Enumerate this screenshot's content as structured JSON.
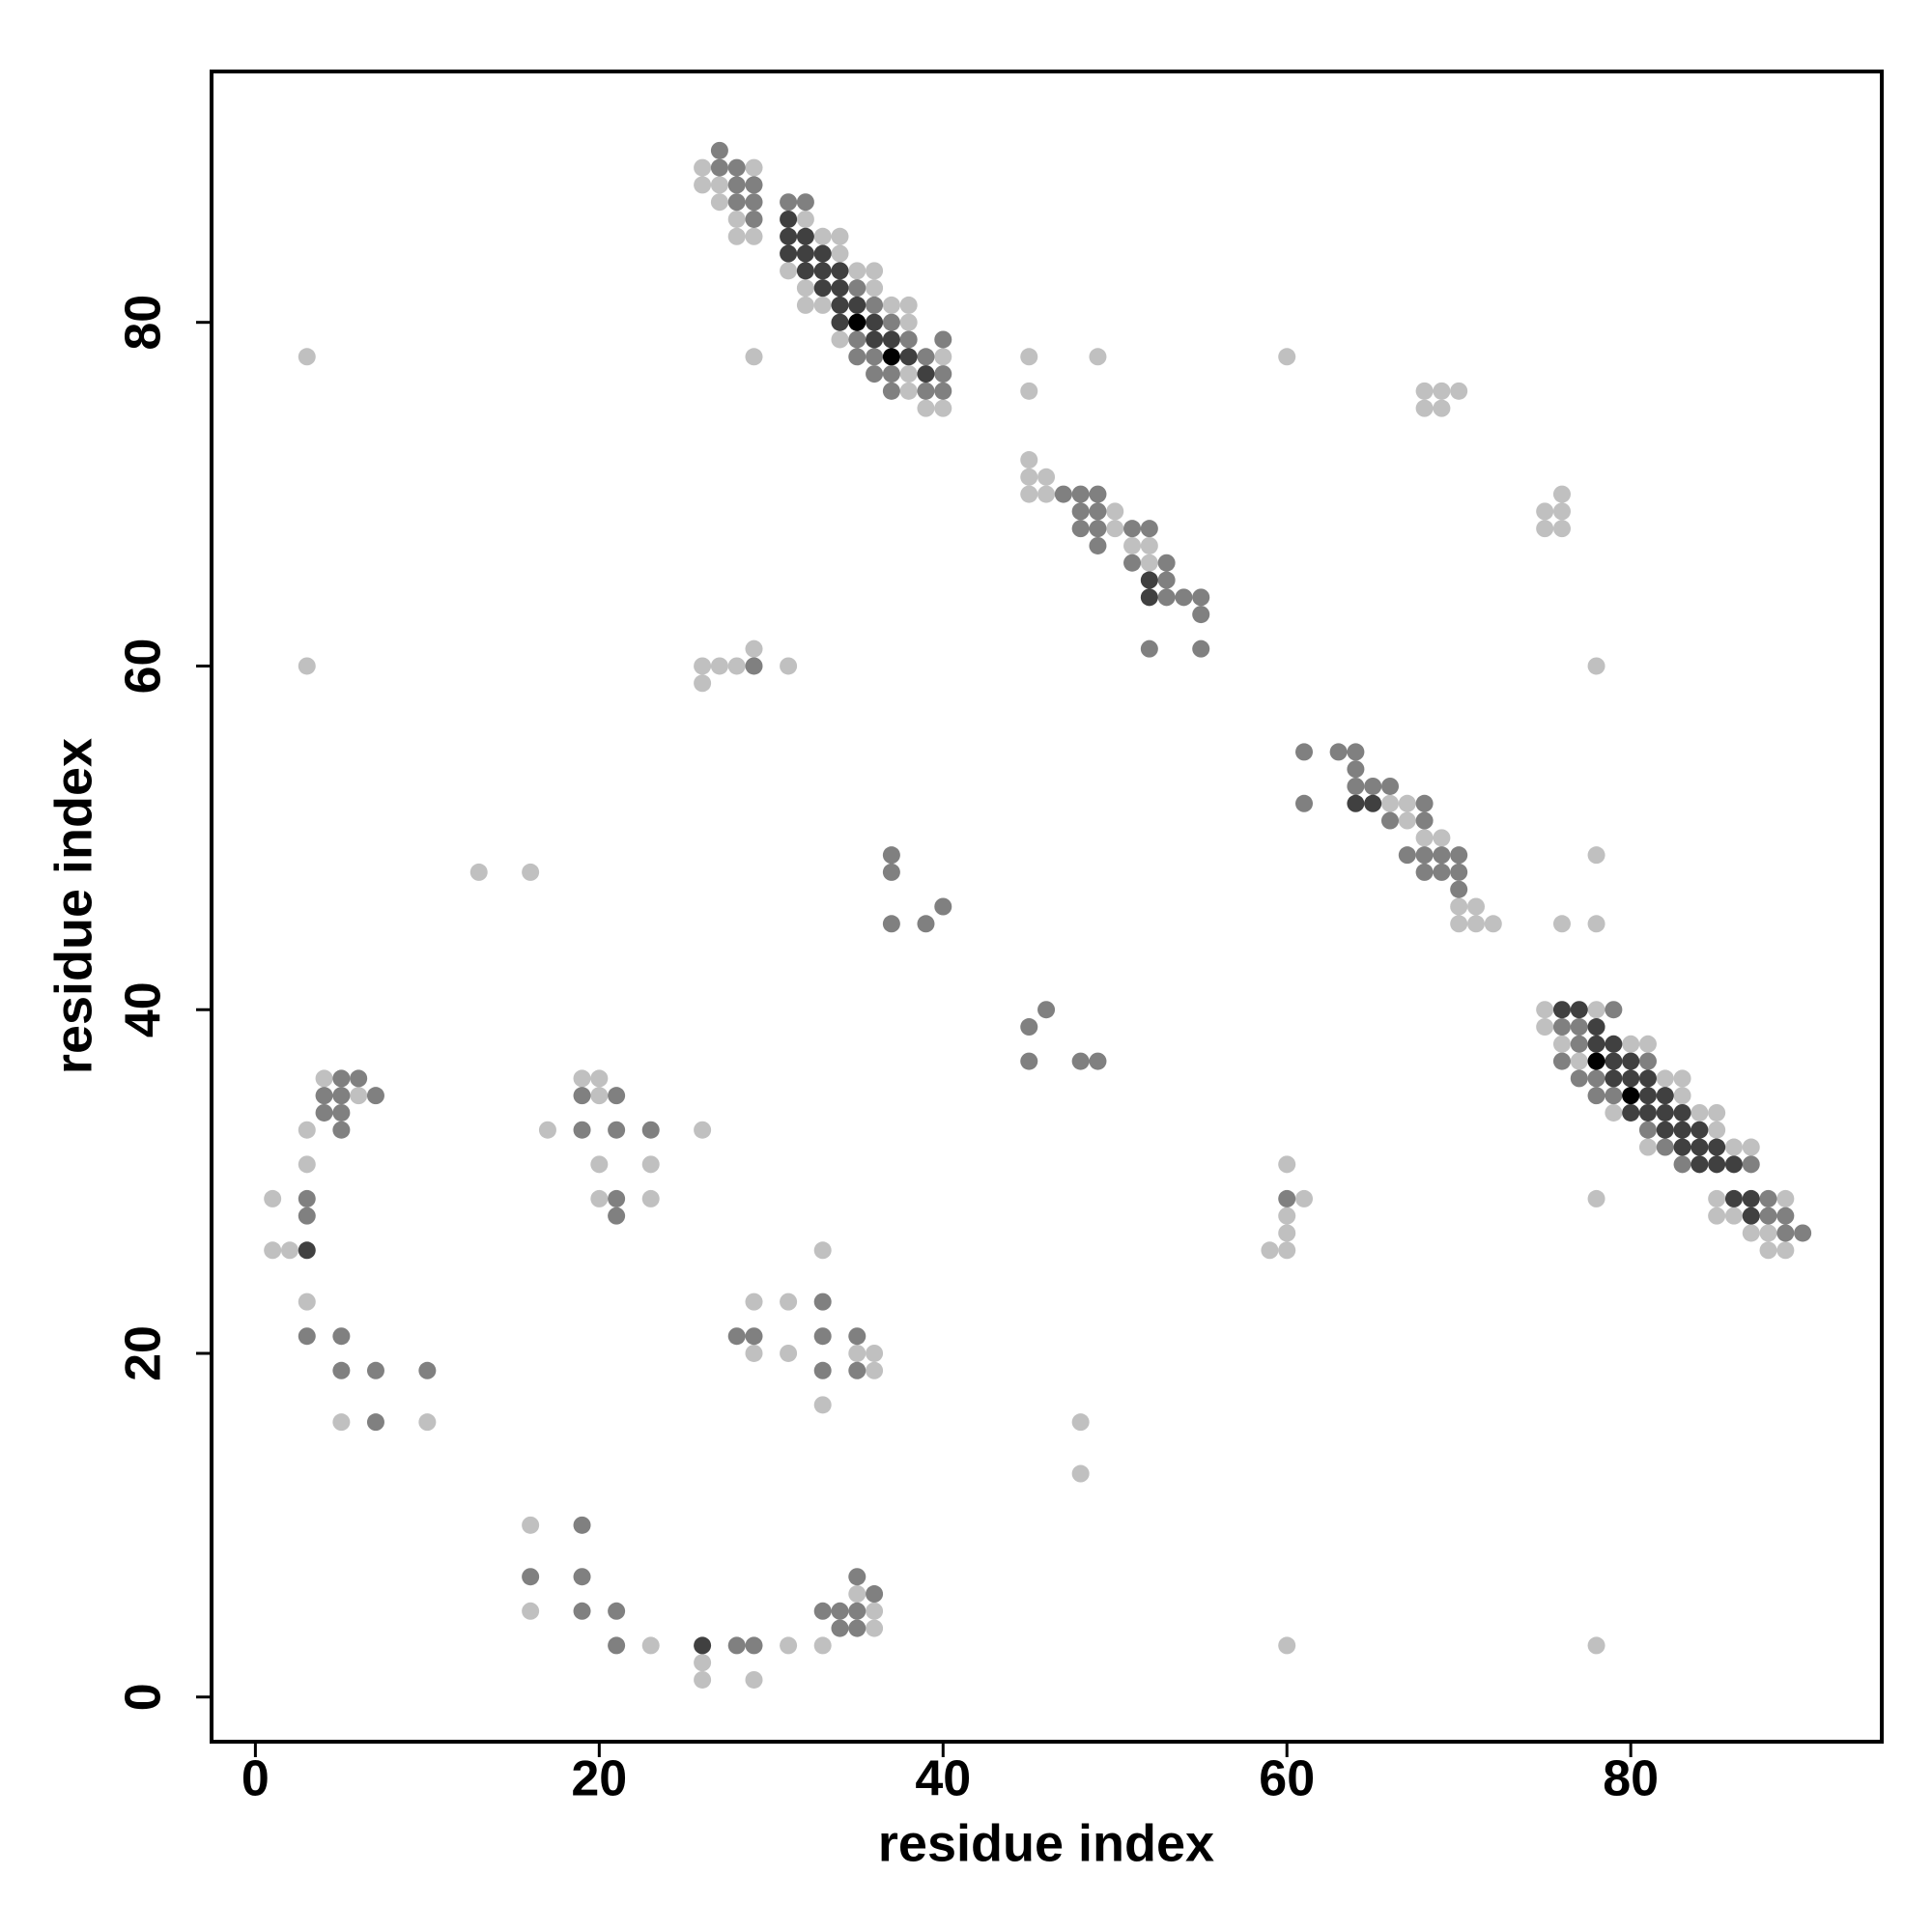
{
  "chart_data": {
    "type": "scatter",
    "xlabel": "residue index",
    "ylabel": "residue index",
    "xlim": [
      -2.55,
      94.6
    ],
    "ylim": [
      -2.6,
      94.6
    ],
    "xticks": [
      0,
      20,
      40,
      60,
      80
    ],
    "yticks": [
      0,
      20,
      40,
      60,
      80
    ],
    "series": [
      {
        "color": "#c0c0c0",
        "x": [
          26,
          29,
          26,
          27,
          27,
          28,
          32,
          28,
          29,
          33,
          34,
          34,
          31,
          35,
          36,
          32,
          36,
          32,
          33,
          37,
          38,
          38,
          34,
          3,
          29,
          40,
          45,
          49,
          60,
          38,
          38,
          45,
          68,
          69,
          70,
          39,
          40,
          68,
          69,
          45,
          45,
          46,
          45,
          46,
          76,
          50,
          75,
          76,
          50,
          75,
          76,
          51,
          52,
          52,
          29,
          3,
          26,
          27,
          28,
          31,
          78,
          26,
          66,
          67,
          67,
          68,
          69,
          78,
          13,
          16,
          70,
          71,
          70,
          71,
          72,
          76,
          78,
          75,
          78,
          75,
          76,
          80,
          81,
          77,
          82,
          83,
          4,
          19,
          20,
          83,
          6,
          20,
          79,
          84,
          85,
          85,
          3,
          17,
          26,
          81,
          86,
          87,
          3,
          20,
          23,
          60,
          78,
          85,
          89,
          1,
          20,
          23,
          61,
          85,
          86,
          60,
          87,
          88,
          60,
          88,
          89,
          1,
          2,
          33,
          59,
          60,
          3,
          29,
          31,
          29,
          31,
          35,
          36,
          36,
          33,
          5,
          10,
          48,
          48,
          16,
          35,
          16,
          36,
          36,
          23,
          31,
          33,
          60,
          78,
          26,
          26,
          29
        ],
        "y": [
          89,
          89,
          88,
          88,
          87,
          86,
          86,
          85,
          85,
          85,
          85,
          84,
          83,
          83,
          83,
          82,
          82,
          81,
          81,
          81,
          81,
          80,
          79,
          78,
          78,
          78,
          78,
          78,
          78,
          77,
          76,
          76,
          76,
          76,
          76,
          75,
          75,
          75,
          75,
          72,
          71,
          71,
          70,
          70,
          70,
          69,
          69,
          69,
          68,
          68,
          68,
          67,
          67,
          66,
          61,
          60,
          60,
          60,
          60,
          60,
          60,
          59,
          52,
          52,
          51,
          50,
          50,
          49,
          48,
          48,
          46,
          46,
          45,
          45,
          45,
          45,
          45,
          40,
          40,
          39,
          38,
          38,
          38,
          37,
          36,
          36,
          36,
          36,
          36,
          35,
          35,
          35,
          34,
          34,
          34,
          33,
          33,
          33,
          33,
          32,
          32,
          32,
          31,
          31,
          31,
          31,
          29,
          29,
          29,
          29,
          29,
          29,
          29,
          28,
          28,
          28,
          27,
          27,
          27,
          26,
          26,
          26,
          26,
          26,
          26,
          26,
          23,
          23,
          23,
          20,
          20,
          20,
          20,
          19,
          17,
          16,
          16,
          16,
          13,
          10,
          6,
          5,
          5,
          4,
          3,
          3,
          3,
          3,
          3,
          2,
          1,
          1
        ]
      },
      {
        "color": "#808080",
        "x": [
          27,
          27,
          28,
          28,
          29,
          28,
          29,
          31,
          32,
          29,
          35,
          36,
          37,
          35,
          38,
          40,
          35,
          36,
          39,
          36,
          37,
          40,
          37,
          39,
          40,
          47,
          48,
          49,
          48,
          49,
          48,
          49,
          51,
          52,
          49,
          51,
          53,
          53,
          53,
          54,
          55,
          55,
          52,
          55,
          29,
          61,
          63,
          64,
          64,
          64,
          65,
          66,
          61,
          68,
          66,
          68,
          37,
          67,
          68,
          69,
          70,
          37,
          68,
          69,
          70,
          70,
          40,
          37,
          39,
          46,
          79,
          45,
          76,
          77,
          77,
          45,
          48,
          49,
          76,
          81,
          77,
          78,
          5,
          6,
          78,
          79,
          4,
          5,
          7,
          19,
          21,
          4,
          5,
          81,
          5,
          19,
          21,
          23,
          82,
          83,
          87,
          88,
          3,
          21,
          60,
          88,
          89,
          3,
          21,
          89,
          90,
          33,
          3,
          5,
          28,
          29,
          33,
          35,
          5,
          7,
          10,
          33,
          35,
          7,
          19,
          16,
          19,
          35,
          36,
          19,
          21,
          33,
          34,
          35,
          34,
          35,
          21,
          28,
          29
        ],
        "y": [
          90,
          89,
          89,
          88,
          88,
          87,
          87,
          87,
          87,
          86,
          82,
          81,
          80,
          79,
          79,
          79,
          78,
          78,
          78,
          77,
          77,
          77,
          76,
          76,
          76,
          70,
          70,
          70,
          69,
          69,
          68,
          68,
          68,
          68,
          67,
          66,
          66,
          65,
          64,
          64,
          64,
          63,
          61,
          61,
          60,
          55,
          55,
          55,
          54,
          53,
          53,
          53,
          52,
          52,
          51,
          51,
          49,
          49,
          49,
          49,
          49,
          48,
          48,
          48,
          48,
          47,
          46,
          45,
          45,
          40,
          40,
          39,
          39,
          39,
          38,
          37,
          37,
          37,
          37,
          37,
          36,
          36,
          36,
          36,
          35,
          35,
          35,
          35,
          35,
          35,
          35,
          34,
          34,
          33,
          33,
          33,
          33,
          33,
          32,
          31,
          31,
          29,
          29,
          29,
          29,
          28,
          28,
          28,
          28,
          27,
          27,
          23,
          21,
          21,
          21,
          21,
          21,
          21,
          19,
          19,
          19,
          19,
          19,
          16,
          10,
          7,
          7,
          7,
          6,
          5,
          5,
          5,
          5,
          5,
          4,
          4,
          3,
          3,
          3
        ]
      },
      {
        "color": "#404040",
        "x": [
          31,
          31,
          32,
          31,
          32,
          33,
          32,
          33,
          34,
          33,
          34,
          34,
          35,
          34,
          36,
          36,
          37,
          38,
          39,
          52,
          52,
          64,
          65,
          76,
          77,
          78,
          78,
          79,
          79,
          80,
          79,
          80,
          81,
          81,
          82,
          80,
          81,
          82,
          83,
          82,
          83,
          84,
          83,
          84,
          85,
          84,
          85,
          86,
          86,
          87,
          87,
          3,
          26
        ],
        "y": [
          86,
          85,
          85,
          84,
          84,
          84,
          83,
          83,
          83,
          82,
          82,
          81,
          81,
          80,
          80,
          79,
          79,
          78,
          77,
          65,
          64,
          52,
          52,
          40,
          40,
          39,
          38,
          38,
          37,
          37,
          36,
          36,
          36,
          35,
          35,
          34,
          34,
          34,
          34,
          33,
          33,
          33,
          32,
          32,
          32,
          31,
          31,
          31,
          29,
          29,
          28,
          26,
          3
        ]
      },
      {
        "color": "#000000",
        "x": [
          35,
          37,
          78,
          80
        ],
        "y": [
          80,
          78,
          37,
          35
        ]
      }
    ]
  }
}
